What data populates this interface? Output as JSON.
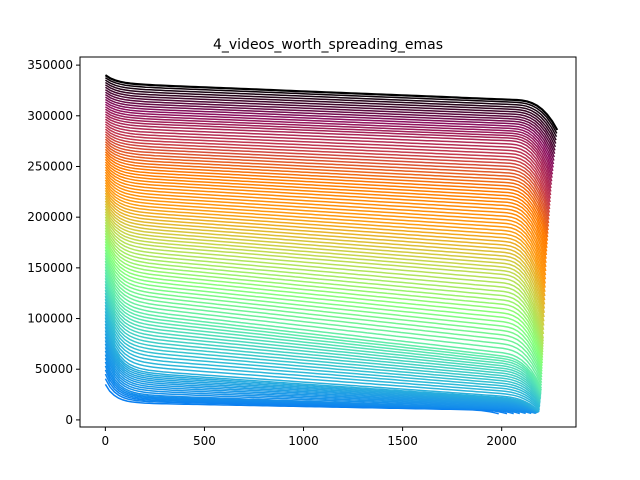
{
  "chart_data": {
    "type": "line",
    "title": "4_videos_worth_spreading_emas",
    "xlabel": "",
    "ylabel": "",
    "xlim": [
      -128,
      2375
    ],
    "ylim": [
      -7000,
      358000
    ],
    "x_ticks": [
      0,
      500,
      1000,
      1500,
      2000
    ],
    "y_ticks": [
      0,
      50000,
      100000,
      150000,
      200000,
      250000,
      300000,
      350000
    ],
    "x_tick_labels": [
      "0",
      "500",
      "1000",
      "1500",
      "2000"
    ],
    "y_tick_labels": [
      "0",
      "50000",
      "100000",
      "150000",
      "200000",
      "250000",
      "300000",
      "350000"
    ],
    "grid": false,
    "legend": "none",
    "colormap": [
      "#0a7ff0",
      "#1e9be6",
      "#30bcd6",
      "#5ce8b0",
      "#86ff7a",
      "#c6d84e",
      "#ff9a10",
      "#ff7a00",
      "#c43a4e",
      "#8a1060",
      "#000000"
    ],
    "series_summary": {
      "count": 110,
      "description_of_shape": "each run starts near its initial value, drops quickly at first, declines slowly, then drops at the end",
      "series": [
        {
          "start": 35000,
          "plateau_start": 17000,
          "plateau_end": 9500,
          "end": 6000,
          "x_end": 1985
        },
        {
          "start": 60000,
          "plateau_start": 25000,
          "plateau_end": 10000,
          "end": 6500,
          "x_end": 2170
        },
        {
          "start": 100000,
          "plateau_start": 50000,
          "plateau_end": 20000,
          "end": 8000,
          "x_end": 2190
        },
        {
          "start": 150000,
          "plateau_start": 110000,
          "plateau_end": 60000,
          "end": 30000,
          "x_end": 2200
        },
        {
          "start": 200000,
          "plateau_start": 175000,
          "plateau_end": 140000,
          "end": 80000,
          "x_end": 2210
        },
        {
          "start": 250000,
          "plateau_start": 235000,
          "plateau_end": 210000,
          "end": 160000,
          "x_end": 2225
        },
        {
          "start": 300000,
          "plateau_start": 292000,
          "plateau_end": 275000,
          "end": 230000,
          "x_end": 2250
        },
        {
          "start": 340000,
          "plateau_start": 332000,
          "plateau_end": 314000,
          "end": 286000,
          "x_end": 2280
        }
      ]
    }
  }
}
